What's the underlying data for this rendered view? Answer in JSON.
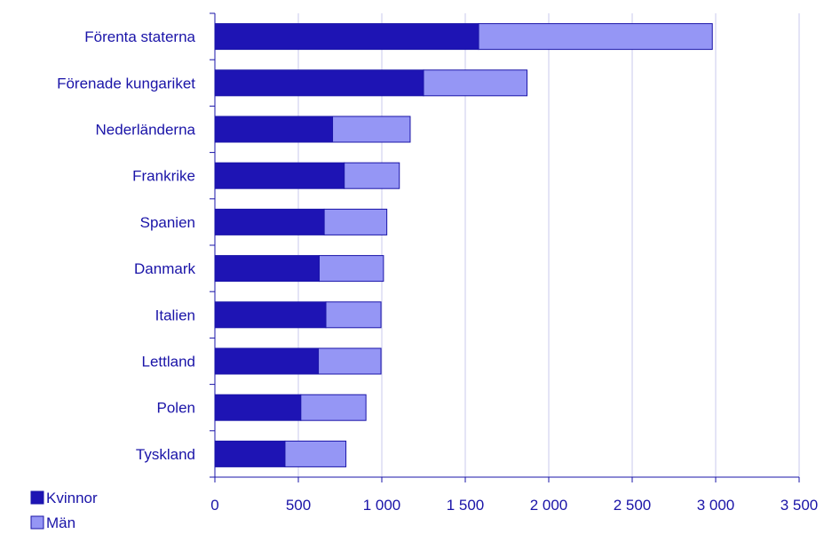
{
  "chart_data": {
    "type": "bar",
    "orientation": "horizontal",
    "stacked": true,
    "categories": [
      "Förenta staterna",
      "Förenade kungariket",
      "Nederländerna",
      "Frankrike",
      "Spanien",
      "Danmark",
      "Italien",
      "Lettland",
      "Polen",
      "Tyskland"
    ],
    "series": [
      {
        "name": "Kvinnor",
        "values": [
          1580,
          1250,
          705,
          775,
          655,
          625,
          665,
          620,
          515,
          420
        ],
        "color": "#1e14b4"
      },
      {
        "name": "Män",
        "values": [
          1400,
          620,
          465,
          330,
          375,
          385,
          330,
          375,
          390,
          365
        ],
        "color": "#9596f5"
      }
    ],
    "xticks": [
      "0",
      "500",
      "1 000",
      "1 500",
      "2 000",
      "2 500",
      "3 000",
      "3 500"
    ],
    "xlim": [
      0,
      3500
    ],
    "grid": "vertical",
    "legend": "bottom-left",
    "title": "",
    "xlabel": "",
    "ylabel": ""
  }
}
